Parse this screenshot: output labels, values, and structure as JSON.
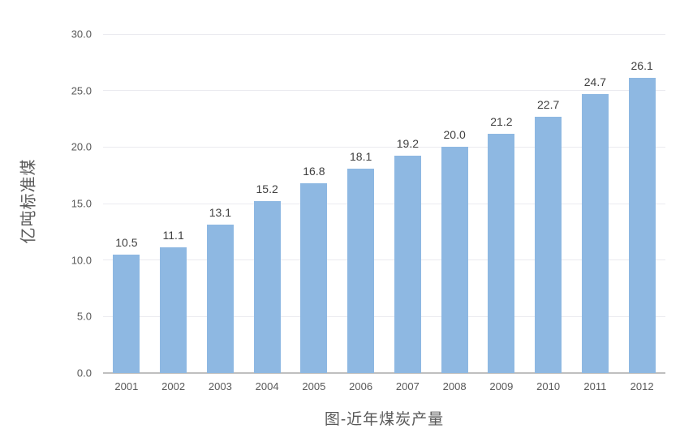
{
  "colors": {
    "background": "#ffffff",
    "bar": "#8eb8e2",
    "grid": "#ebebf0",
    "axis": "#bfbfbf",
    "tick_text": "#595959",
    "label_text": "#404040",
    "title_text": "#595959"
  },
  "chart_data": {
    "type": "bar",
    "title": "图-近年煤炭产量",
    "ylabel": "亿吨标准煤",
    "xlabel": "",
    "categories": [
      "2001",
      "2002",
      "2003",
      "2004",
      "2005",
      "2006",
      "2007",
      "2008",
      "2009",
      "2010",
      "2011",
      "2012"
    ],
    "values": [
      10.5,
      11.1,
      13.1,
      15.2,
      16.8,
      18.1,
      19.2,
      20.0,
      21.2,
      22.7,
      24.7,
      26.1
    ],
    "value_labels": [
      "10.5",
      "11.1",
      "13.1",
      "15.2",
      "16.8",
      "18.1",
      "19.2",
      "20.0",
      "21.2",
      "22.7",
      "24.7",
      "26.1"
    ],
    "ylim": [
      0,
      30
    ],
    "ytick_values": [
      0,
      5,
      10,
      15,
      20,
      25,
      30
    ],
    "ytick_labels": [
      "0.0",
      "5.0",
      "10.0",
      "15.0",
      "20.0",
      "25.0",
      "30.0"
    ],
    "grid": true,
    "legend_position": "none"
  }
}
